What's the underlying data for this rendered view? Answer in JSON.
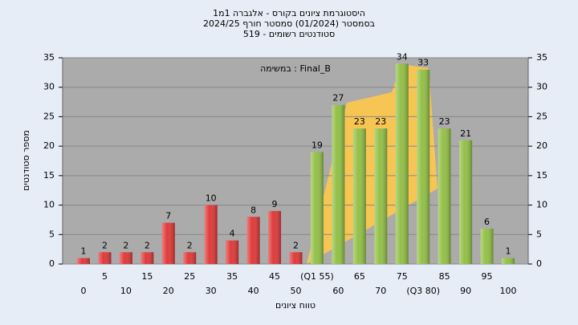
{
  "chart_data": {
    "type": "bar",
    "title": "היסטוגרמת ציונים בקורס - אלגברה 1מ1",
    "subtitle": "בסמסטר  (01/2024)  סמסטר חורף 2024/25",
    "subtitle2": "סטודנטים רשומים - 519",
    "annotation": "במשימה : Final_B",
    "x_label": "טווח ציונים",
    "y_label": "מספר סטודנטים",
    "categories": [
      "0",
      "5",
      "10",
      "15",
      "20",
      "25",
      "30",
      "35",
      "40",
      "45",
      "50",
      "(Q1 55)",
      "60",
      "65",
      "70",
      "75",
      "(Q3 80)",
      "85",
      "90",
      "95",
      "100"
    ],
    "values": [
      1,
      2,
      2,
      2,
      7,
      2,
      10,
      4,
      8,
      9,
      2,
      19,
      27,
      23,
      23,
      34,
      33,
      23,
      21,
      6,
      1
    ],
    "colors": [
      "#e03a3a",
      "#e03a3a",
      "#e03a3a",
      "#e03a3a",
      "#e03a3a",
      "#e03a3a",
      "#e03a3a",
      "#e03a3a",
      "#e03a3a",
      "#e03a3a",
      "#e03a3a",
      "#93c047",
      "#93c047",
      "#93c047",
      "#93c047",
      "#93c047",
      "#93c047",
      "#93c047",
      "#93c047",
      "#93c047",
      "#93c047"
    ],
    "ylim": [
      0,
      35
    ],
    "yticks": [
      0,
      5,
      10,
      15,
      20,
      25,
      30,
      35
    ],
    "y2lim": [
      0,
      35
    ],
    "y2ticks": [
      0,
      5,
      10,
      15,
      20,
      25,
      30,
      35
    ],
    "grid": true
  }
}
